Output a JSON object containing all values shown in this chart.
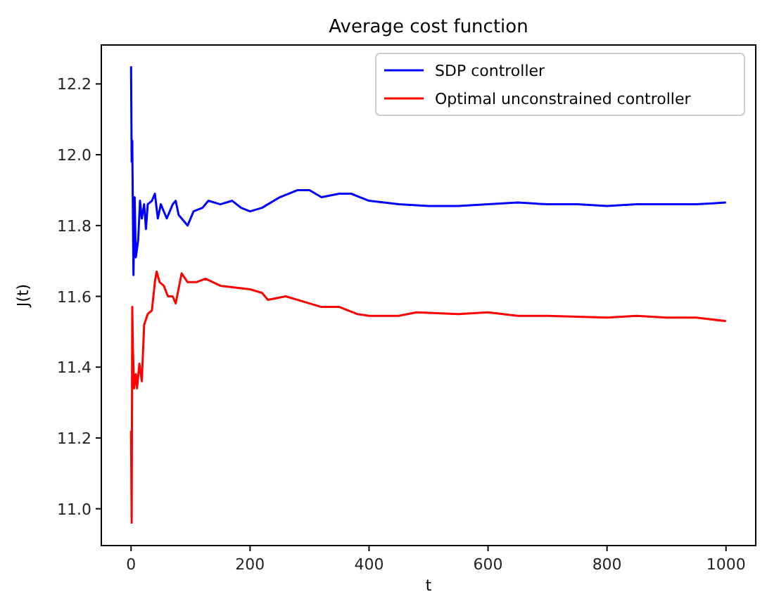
{
  "chart_data": {
    "type": "line",
    "title": "Average cost function",
    "xlabel": "t",
    "ylabel": "J(t)",
    "xlim": [
      -50,
      1050
    ],
    "ylim": [
      10.896,
      12.31
    ],
    "xticks": [
      0,
      200,
      400,
      600,
      800,
      1000
    ],
    "yticks": [
      {
        "value": 11.0,
        "label": "11.0"
      },
      {
        "value": 11.2,
        "label": "11.2"
      },
      {
        "value": 11.4,
        "label": "11.4"
      },
      {
        "value": 11.6,
        "label": "11.6"
      },
      {
        "value": 11.8,
        "label": "11.8"
      },
      {
        "value": 12.0,
        "label": "12.0"
      },
      {
        "value": 12.2,
        "label": "12.2"
      }
    ],
    "legend": "top right",
    "grid": false,
    "marker": "none",
    "line_style": "solid",
    "series": [
      {
        "name": "SDP controller",
        "color": "#0000ff",
        "x": [
          0,
          1,
          2,
          4,
          6,
          8,
          12,
          15,
          18,
          22,
          25,
          28,
          35,
          40,
          45,
          50,
          60,
          70,
          75,
          80,
          90,
          95,
          105,
          120,
          130,
          150,
          170,
          185,
          200,
          220,
          250,
          280,
          300,
          320,
          350,
          370,
          400,
          450,
          500,
          550,
          600,
          650,
          700,
          750,
          800,
          850,
          900,
          950,
          1000
        ],
        "values": [
          12.25,
          11.98,
          12.04,
          11.66,
          11.88,
          11.71,
          11.76,
          11.87,
          11.82,
          11.86,
          11.79,
          11.86,
          11.87,
          11.89,
          11.82,
          11.86,
          11.82,
          11.86,
          11.87,
          11.83,
          11.81,
          11.8,
          11.84,
          11.85,
          11.87,
          11.86,
          11.87,
          11.85,
          11.84,
          11.85,
          11.88,
          11.9,
          11.9,
          11.88,
          11.89,
          11.89,
          11.87,
          11.86,
          11.855,
          11.855,
          11.86,
          11.865,
          11.86,
          11.86,
          11.855,
          11.86,
          11.86,
          11.86,
          11.865
        ]
      },
      {
        "name": "Optimal unconstrained controller",
        "color": "#ff0000",
        "x": [
          0,
          1,
          2,
          3,
          5,
          8,
          10,
          14,
          18,
          22,
          28,
          35,
          40,
          43,
          48,
          55,
          62,
          70,
          75,
          85,
          95,
          110,
          125,
          150,
          175,
          200,
          220,
          230,
          260,
          300,
          320,
          350,
          380,
          400,
          450,
          480,
          550,
          600,
          650,
          700,
          800,
          850,
          900,
          950,
          1000
        ],
        "values": [
          11.22,
          10.96,
          11.57,
          11.46,
          11.34,
          11.38,
          11.34,
          11.41,
          11.36,
          11.52,
          11.55,
          11.56,
          11.64,
          11.67,
          11.64,
          11.63,
          11.6,
          11.6,
          11.58,
          11.665,
          11.64,
          11.64,
          11.65,
          11.63,
          11.625,
          11.62,
          11.61,
          11.59,
          11.6,
          11.58,
          11.57,
          11.57,
          11.55,
          11.545,
          11.545,
          11.555,
          11.55,
          11.555,
          11.545,
          11.545,
          11.54,
          11.545,
          11.54,
          11.54,
          11.53
        ]
      }
    ]
  }
}
